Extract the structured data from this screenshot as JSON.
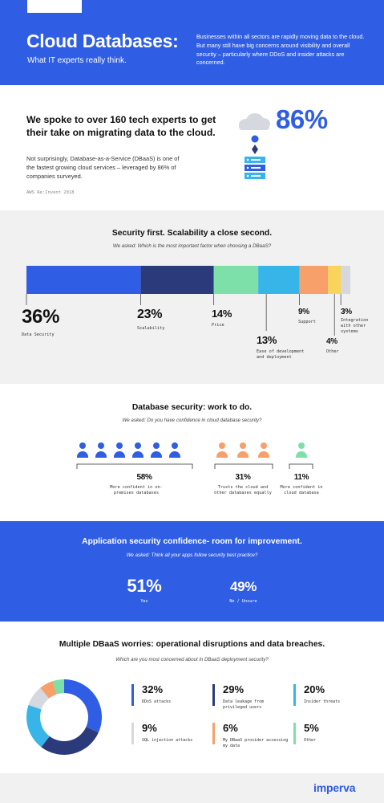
{
  "header": {
    "title": "Cloud Databases:",
    "subtitle": "What IT experts really think.",
    "description": "Businesses within all sectors are rapidly moving data to the cloud. But many still have big concerns around visibility and overall security – particularly where DDoS and insider attacks are concerned."
  },
  "intro": {
    "title": "We spoke to over 160 tech experts to get their take on migrating data to the cloud.",
    "body": "Not surprisingly, Database-as-a-Service (DBaaS) is one of the fastest growing cloud services – leveraged by 86% of companies surveyed.",
    "source": "AWS Re:Invent 2018",
    "stat": "86%"
  },
  "colors": {
    "brand_blue": "#2f5de3",
    "navy": "#2b3a7a",
    "green": "#7de0a8",
    "sky": "#38b5e8",
    "orange": "#f7a06a",
    "yellow": "#f9d45b",
    "grey": "#d5d8de"
  },
  "chart_data": [
    {
      "type": "bar",
      "title": "Security first. Scalability a close second.",
      "question": "We asked: Which is the most important factor when choosing a DBaaS?",
      "categories": [
        "Data Security",
        "Scalability",
        "Price",
        "Ease of development and deployment",
        "Support",
        "Other",
        "Integration with other systems"
      ],
      "values": [
        36,
        23,
        14,
        13,
        9,
        4,
        3
      ],
      "labels": [
        "36%",
        "23%",
        "14%",
        "13%",
        "9%",
        "4%",
        "3%"
      ],
      "stacked": true
    },
    {
      "type": "bar",
      "title": "Database security: work to do.",
      "question": "We asked: Do you have confidence in cloud database security?",
      "categories": [
        "More confident in on-premises databases",
        "Trusts the cloud and other databases equally",
        "More confident in cloud database"
      ],
      "values": [
        58,
        31,
        11
      ],
      "labels": [
        "58%",
        "31%",
        "11%"
      ],
      "icons": [
        6,
        3,
        1
      ]
    },
    {
      "type": "bar",
      "title": "Application security confidence- room for improvement.",
      "question": "We asked: Think all your apps follow security best practice?",
      "categories": [
        "Yes",
        "No / Unsure"
      ],
      "values": [
        51,
        49
      ],
      "labels": [
        "51%",
        "49%"
      ]
    },
    {
      "type": "pie",
      "title": "Multiple DBaaS worries: operational disruptions and data breaches.",
      "question": "Which are you most concerned about in DBaaS deployment security?",
      "categories": [
        "DDoS attacks",
        "Data leakage from privileged users",
        "Insider threats",
        "SQL injection attacks",
        "My DBaaS provider accessing my data",
        "Other"
      ],
      "values": [
        32,
        29,
        20,
        9,
        6,
        5
      ],
      "labels": [
        "32%",
        "29%",
        "20%",
        "9%",
        "6%",
        "5%"
      ]
    }
  ],
  "footer": {
    "logo": "imperva"
  }
}
